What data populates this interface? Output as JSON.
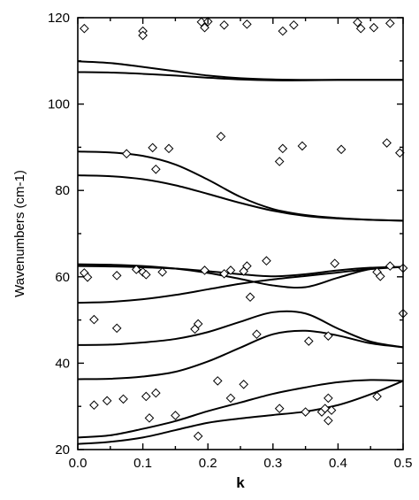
{
  "chart_data": {
    "type": "scatter",
    "xlabel": "k",
    "ylabel": "Wavenumbers (cm-1)",
    "xlim": [
      0.0,
      0.5
    ],
    "ylim": [
      20,
      120
    ],
    "x_ticks": [
      "0.0",
      "0.1",
      "0.2",
      "0.3",
      "0.4",
      "0.5"
    ],
    "y_ticks": [
      "20",
      "40",
      "60",
      "80",
      "100",
      "120"
    ],
    "x_tick_values": [
      0.0,
      0.1,
      0.2,
      0.3,
      0.4,
      0.5
    ],
    "y_tick_values": [
      20,
      40,
      60,
      80,
      100,
      120
    ],
    "grid": false,
    "legend": "none",
    "curves": [
      {
        "x": [
          0.0,
          0.05,
          0.1,
          0.15,
          0.2,
          0.25,
          0.3,
          0.35,
          0.4,
          0.45,
          0.5
        ],
        "y": [
          109.9,
          109.5,
          108.6,
          107.6,
          106.6,
          106.0,
          105.7,
          105.6,
          105.6,
          105.6,
          105.6
        ]
      },
      {
        "x": [
          0.0,
          0.05,
          0.1,
          0.15,
          0.2,
          0.25,
          0.3,
          0.35,
          0.4,
          0.45,
          0.5
        ],
        "y": [
          107.4,
          107.3,
          107.0,
          106.6,
          106.1,
          105.7,
          105.5,
          105.5,
          105.6,
          105.6,
          105.6
        ]
      },
      {
        "x": [
          0.0,
          0.05,
          0.1,
          0.15,
          0.2,
          0.25,
          0.3,
          0.35,
          0.4,
          0.45,
          0.5
        ],
        "y": [
          89.0,
          88.8,
          88.0,
          86.0,
          82.5,
          78.5,
          75.7,
          74.3,
          73.6,
          73.2,
          73.0
        ]
      },
      {
        "x": [
          0.0,
          0.05,
          0.1,
          0.15,
          0.2,
          0.25,
          0.3,
          0.35,
          0.4,
          0.45,
          0.5
        ],
        "y": [
          83.5,
          83.3,
          82.6,
          81.2,
          79.2,
          77.1,
          75.3,
          74.1,
          73.5,
          73.2,
          73.0
        ]
      },
      {
        "x": [
          0.0,
          0.05,
          0.1,
          0.15,
          0.2,
          0.25,
          0.3,
          0.35,
          0.4,
          0.45,
          0.5
        ],
        "y": [
          62.9,
          62.8,
          62.5,
          61.9,
          60.9,
          59.5,
          58.0,
          57.6,
          59.8,
          61.8,
          62.3
        ]
      },
      {
        "x": [
          0.0,
          0.05,
          0.1,
          0.15,
          0.2,
          0.25,
          0.3,
          0.35,
          0.4,
          0.45,
          0.5
        ],
        "y": [
          62.5,
          62.4,
          62.2,
          61.9,
          61.3,
          60.6,
          60.1,
          60.6,
          61.5,
          62.1,
          62.3
        ]
      },
      {
        "x": [
          0.0,
          0.05,
          0.1,
          0.15,
          0.2,
          0.25,
          0.3,
          0.35,
          0.4,
          0.45,
          0.5
        ],
        "y": [
          54.0,
          54.2,
          54.8,
          55.8,
          57.1,
          58.4,
          59.4,
          60.2,
          61.0,
          61.8,
          62.3
        ]
      },
      {
        "x": [
          0.0,
          0.05,
          0.1,
          0.15,
          0.2,
          0.25,
          0.3,
          0.35,
          0.4,
          0.45,
          0.5
        ],
        "y": [
          44.2,
          44.3,
          44.8,
          45.6,
          47.2,
          49.6,
          51.8,
          51.5,
          48.0,
          45.0,
          43.7
        ]
      },
      {
        "x": [
          0.0,
          0.05,
          0.1,
          0.15,
          0.2,
          0.25,
          0.3,
          0.35,
          0.4,
          0.45,
          0.5
        ],
        "y": [
          36.3,
          36.4,
          36.9,
          38.0,
          40.4,
          43.6,
          46.7,
          47.5,
          46.4,
          44.6,
          43.7
        ]
      },
      {
        "x": [
          0.0,
          0.05,
          0.1,
          0.15,
          0.2,
          0.25,
          0.3,
          0.35,
          0.4,
          0.45,
          0.5
        ],
        "y": [
          22.8,
          23.3,
          24.8,
          26.6,
          28.9,
          30.9,
          32.9,
          34.4,
          35.6,
          36.1,
          35.9
        ]
      },
      {
        "x": [
          0.0,
          0.05,
          0.1,
          0.15,
          0.2,
          0.25,
          0.3,
          0.35,
          0.4,
          0.45,
          0.5
        ],
        "y": [
          21.3,
          21.8,
          22.8,
          24.5,
          26.2,
          27.2,
          28.0,
          28.8,
          30.3,
          32.8,
          35.9
        ]
      }
    ],
    "points": [
      {
        "x": 0.01,
        "y": 117.5
      },
      {
        "x": 0.1,
        "y": 116.9
      },
      {
        "x": 0.1,
        "y": 115.9
      },
      {
        "x": 0.19,
        "y": 119.0
      },
      {
        "x": 0.195,
        "y": 117.7
      },
      {
        "x": 0.2,
        "y": 119.1
      },
      {
        "x": 0.225,
        "y": 118.3
      },
      {
        "x": 0.26,
        "y": 118.5
      },
      {
        "x": 0.315,
        "y": 116.9
      },
      {
        "x": 0.332,
        "y": 118.3
      },
      {
        "x": 0.43,
        "y": 118.9
      },
      {
        "x": 0.435,
        "y": 117.5
      },
      {
        "x": 0.455,
        "y": 117.7
      },
      {
        "x": 0.48,
        "y": 118.7
      },
      {
        "x": 0.075,
        "y": 88.5
      },
      {
        "x": 0.115,
        "y": 89.9
      },
      {
        "x": 0.12,
        "y": 84.9
      },
      {
        "x": 0.14,
        "y": 89.7
      },
      {
        "x": 0.22,
        "y": 92.5
      },
      {
        "x": 0.31,
        "y": 86.7
      },
      {
        "x": 0.315,
        "y": 89.7
      },
      {
        "x": 0.345,
        "y": 90.3
      },
      {
        "x": 0.405,
        "y": 89.5
      },
      {
        "x": 0.475,
        "y": 91.0
      },
      {
        "x": 0.495,
        "y": 88.7
      },
      {
        "x": 0.01,
        "y": 60.9
      },
      {
        "x": 0.015,
        "y": 59.9
      },
      {
        "x": 0.06,
        "y": 60.3
      },
      {
        "x": 0.09,
        "y": 61.7
      },
      {
        "x": 0.1,
        "y": 61.1
      },
      {
        "x": 0.105,
        "y": 60.5
      },
      {
        "x": 0.13,
        "y": 61.1
      },
      {
        "x": 0.195,
        "y": 61.5
      },
      {
        "x": 0.225,
        "y": 60.7
      },
      {
        "x": 0.235,
        "y": 61.5
      },
      {
        "x": 0.255,
        "y": 61.3
      },
      {
        "x": 0.26,
        "y": 62.5
      },
      {
        "x": 0.265,
        "y": 55.3
      },
      {
        "x": 0.29,
        "y": 63.7
      },
      {
        "x": 0.395,
        "y": 63.1
      },
      {
        "x": 0.46,
        "y": 61.1
      },
      {
        "x": 0.465,
        "y": 60.1
      },
      {
        "x": 0.48,
        "y": 62.5
      },
      {
        "x": 0.5,
        "y": 62.0
      },
      {
        "x": 0.025,
        "y": 50.1
      },
      {
        "x": 0.06,
        "y": 48.1
      },
      {
        "x": 0.18,
        "y": 47.9
      },
      {
        "x": 0.185,
        "y": 49.1
      },
      {
        "x": 0.275,
        "y": 46.7
      },
      {
        "x": 0.355,
        "y": 45.1
      },
      {
        "x": 0.385,
        "y": 46.3
      },
      {
        "x": 0.5,
        "y": 51.5
      },
      {
        "x": 0.025,
        "y": 30.3
      },
      {
        "x": 0.045,
        "y": 31.3
      },
      {
        "x": 0.07,
        "y": 31.7
      },
      {
        "x": 0.105,
        "y": 32.3
      },
      {
        "x": 0.11,
        "y": 27.3
      },
      {
        "x": 0.12,
        "y": 33.1
      },
      {
        "x": 0.15,
        "y": 27.9
      },
      {
        "x": 0.185,
        "y": 23.1
      },
      {
        "x": 0.215,
        "y": 35.9
      },
      {
        "x": 0.235,
        "y": 31.9
      },
      {
        "x": 0.255,
        "y": 35.1
      },
      {
        "x": 0.31,
        "y": 29.5
      },
      {
        "x": 0.35,
        "y": 28.7
      },
      {
        "x": 0.375,
        "y": 28.7
      },
      {
        "x": 0.38,
        "y": 29.5
      },
      {
        "x": 0.385,
        "y": 31.9
      },
      {
        "x": 0.385,
        "y": 26.7
      },
      {
        "x": 0.39,
        "y": 29.1
      },
      {
        "x": 0.46,
        "y": 32.3
      }
    ]
  }
}
